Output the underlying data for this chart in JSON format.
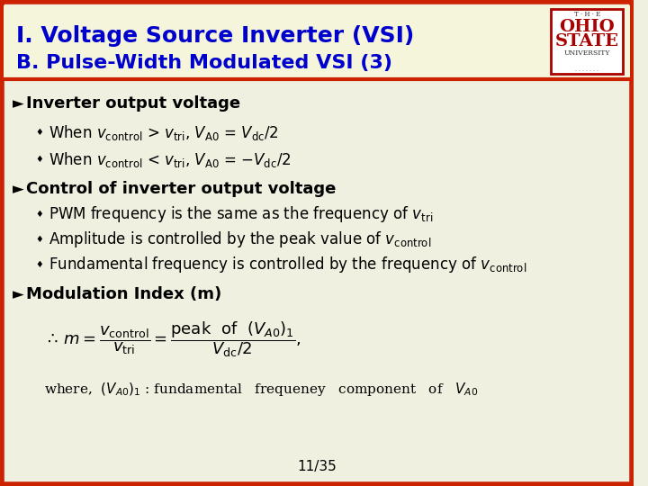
{
  "title_line1": "I. Voltage Source Inverter (VSI)",
  "title_line2": "B. Pulse-Width Modulated VSI (3)",
  "title_color": "#0000CC",
  "header_bg": "#F5F5DC",
  "border_color_outer": "#CC2200",
  "body_bg": "#F5F5E8",
  "slide_bg": "#F0F0E0",
  "page_num": "11/35"
}
